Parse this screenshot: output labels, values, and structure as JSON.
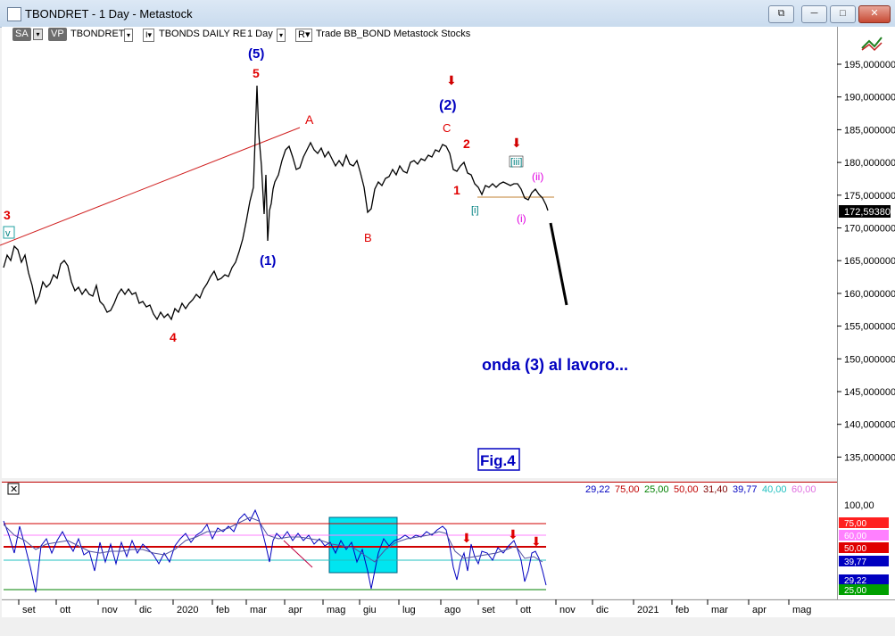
{
  "window": {
    "title": "TBONDRET - 1 Day - Metastock",
    "btn_restore": "⧉",
    "btn_minimize": "─",
    "btn_maximize": "□",
    "btn_close": "✕"
  },
  "toolbar": {
    "sa": "SA",
    "vp": "VP",
    "symbol": "TBONDRET",
    "security": "TBONDS DAILY RE",
    "period": "1 Day",
    "r": "R",
    "extras": "Trade  BB_BOND  Metastock  Stocks"
  },
  "price_axis": {
    "ticks": [
      "195,000000",
      "190,000000",
      "185,000000",
      "180,000000",
      "175,000000",
      "170,000000",
      "165,000000",
      "160,000000",
      "155,000000",
      "150,000000",
      "145,000000",
      "140,000000",
      "135,000000"
    ],
    "last_price": "172,59380",
    "last_price_color": "#000000"
  },
  "annotations": {
    "w5_blue": "(5)",
    "w5_red": "5",
    "a": "A",
    "w2_blue": "(2)",
    "c": "C",
    "two": "2",
    "three": "3",
    "v": "v",
    "w1_blue": "(1)",
    "b": "B",
    "four": "4",
    "one": "1",
    "iii": "[iii]",
    "i_bracket": "[i]",
    "ii_paren": "(ii)",
    "i_paren": "(i)",
    "caption": "onda (3) al lavoro...",
    "fig": "Fig.4"
  },
  "indicator": {
    "legend": [
      {
        "text": "29,22",
        "color": "#0000c0"
      },
      {
        "text": "75,00",
        "color": "#c00000"
      },
      {
        "text": "25,00",
        "color": "#008000"
      },
      {
        "text": "50,00",
        "color": "#c00000"
      },
      {
        "text": "31,40",
        "color": "#800000"
      },
      {
        "text": "39,77",
        "color": "#0000c0"
      },
      {
        "text": "40,00",
        "color": "#20c0c0"
      },
      {
        "text": "60,00",
        "color": "#e070e0"
      }
    ],
    "axis_ticks": [
      "100,00"
    ],
    "tags": [
      {
        "text": "75,00",
        "color": "#ff2020"
      },
      {
        "text": "60,00",
        "color": "#ff80ff"
      },
      {
        "text": "50,00",
        "color": "#e00000"
      },
      {
        "text": "39,77",
        "color": "#0000c0"
      },
      {
        "text": "29,22",
        "color": "#0000c0"
      },
      {
        "text": "25,00",
        "color": "#00a000"
      }
    ]
  },
  "date_axis": [
    "set",
    "ott",
    "nov",
    "dic",
    "2020",
    "feb",
    "mar",
    "apr",
    "mag",
    "giu",
    "lug",
    "ago",
    "set",
    "ott",
    "nov",
    "dic",
    "2021",
    "feb",
    "mar",
    "apr",
    "mag"
  ],
  "colors": {
    "accent_blue": "#0000c0",
    "accent_red": "#d00000",
    "cyan_box": "#00e5f0"
  }
}
